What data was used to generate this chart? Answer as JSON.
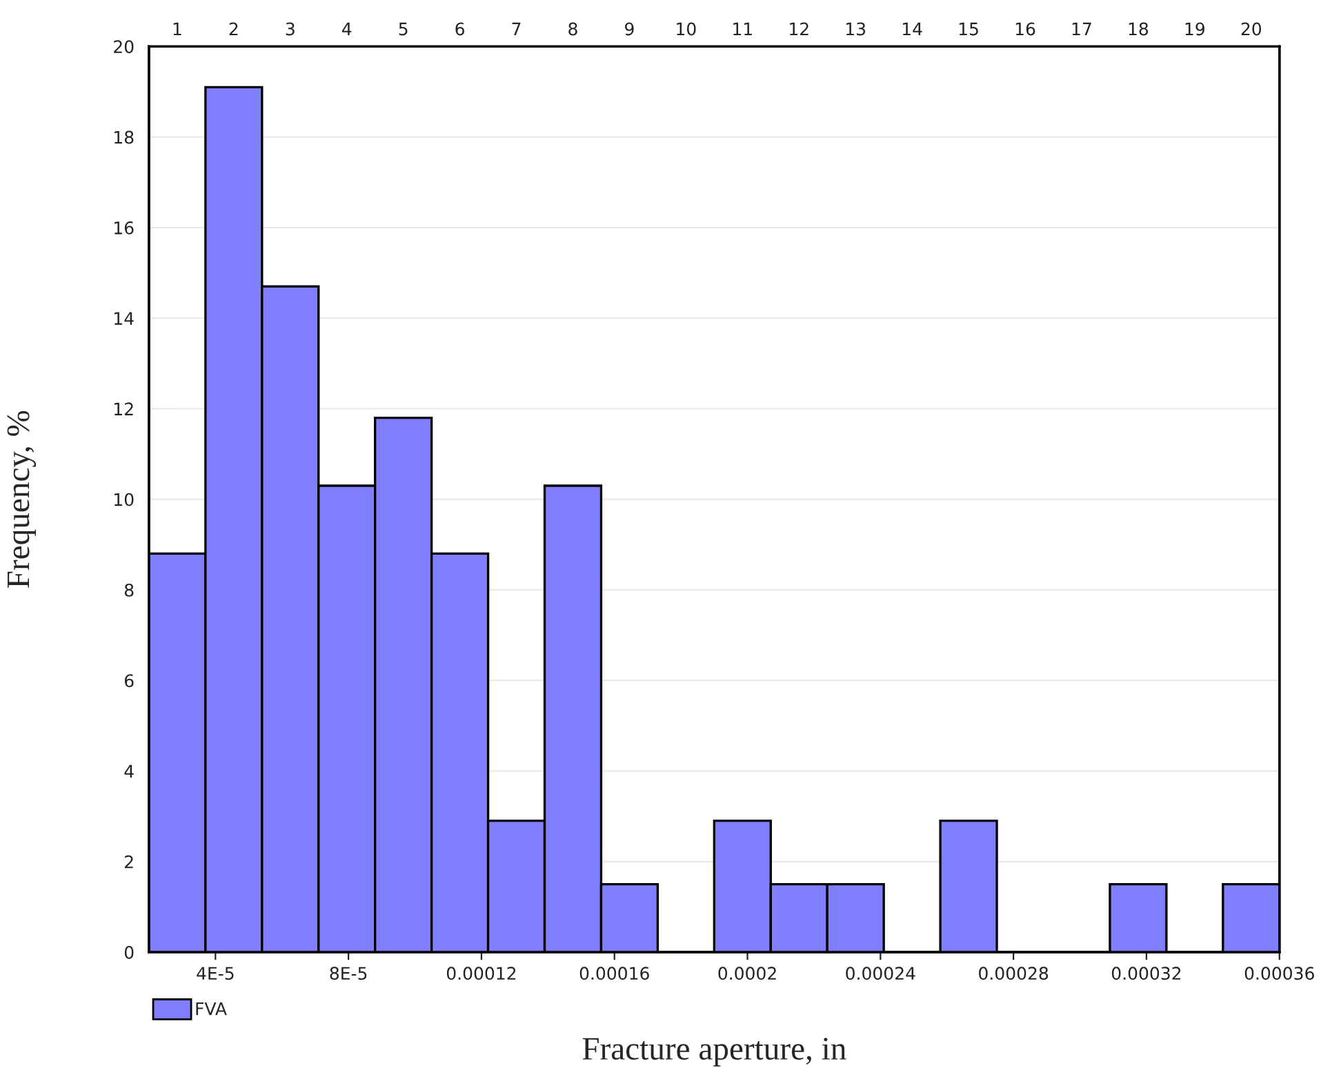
{
  "chart_data": {
    "type": "histogram",
    "xlabel": "Fracture aperture, in",
    "ylabel": "Frequency, %",
    "bins": [
      2e-05,
      3.7e-05,
      5.4e-05,
      7.1e-05,
      8.8e-05,
      0.000105,
      0.000122,
      0.000139,
      0.000156,
      0.000173,
      0.00019,
      0.000207,
      0.000224,
      0.000241,
      0.000258,
      0.000275,
      0.000292,
      0.000309,
      0.000326,
      0.000343,
      0.00036
    ],
    "series": [
      {
        "name": "FVA",
        "color": "#7f7fff",
        "values": [
          8.8,
          19.1,
          14.7,
          10.3,
          11.8,
          8.8,
          2.9,
          10.3,
          1.5,
          0,
          2.9,
          1.5,
          1.5,
          0,
          2.9,
          0,
          0,
          1.5,
          0,
          1.5
        ]
      }
    ],
    "xlim": [
      2e-05,
      0.00036
    ],
    "xticks": [
      {
        "value": 4e-05,
        "label": "4E-5"
      },
      {
        "value": 8e-05,
        "label": "8E-5"
      },
      0.00012,
      0.00016,
      0.0002,
      0.00024,
      0.00028,
      0.00032,
      0.00036
    ],
    "x2lim": [
      0.5,
      20.5
    ],
    "x2ticks": [
      1,
      2,
      3,
      4,
      5,
      6,
      7,
      8,
      9,
      10,
      11,
      12,
      13,
      14,
      15,
      16,
      17,
      18,
      19,
      20
    ],
    "ylim": [
      0,
      20
    ],
    "yticks": [
      0,
      2,
      4,
      6,
      8,
      10,
      12,
      14,
      16,
      18,
      20
    ],
    "grid": "y",
    "legend": "bottom left"
  }
}
